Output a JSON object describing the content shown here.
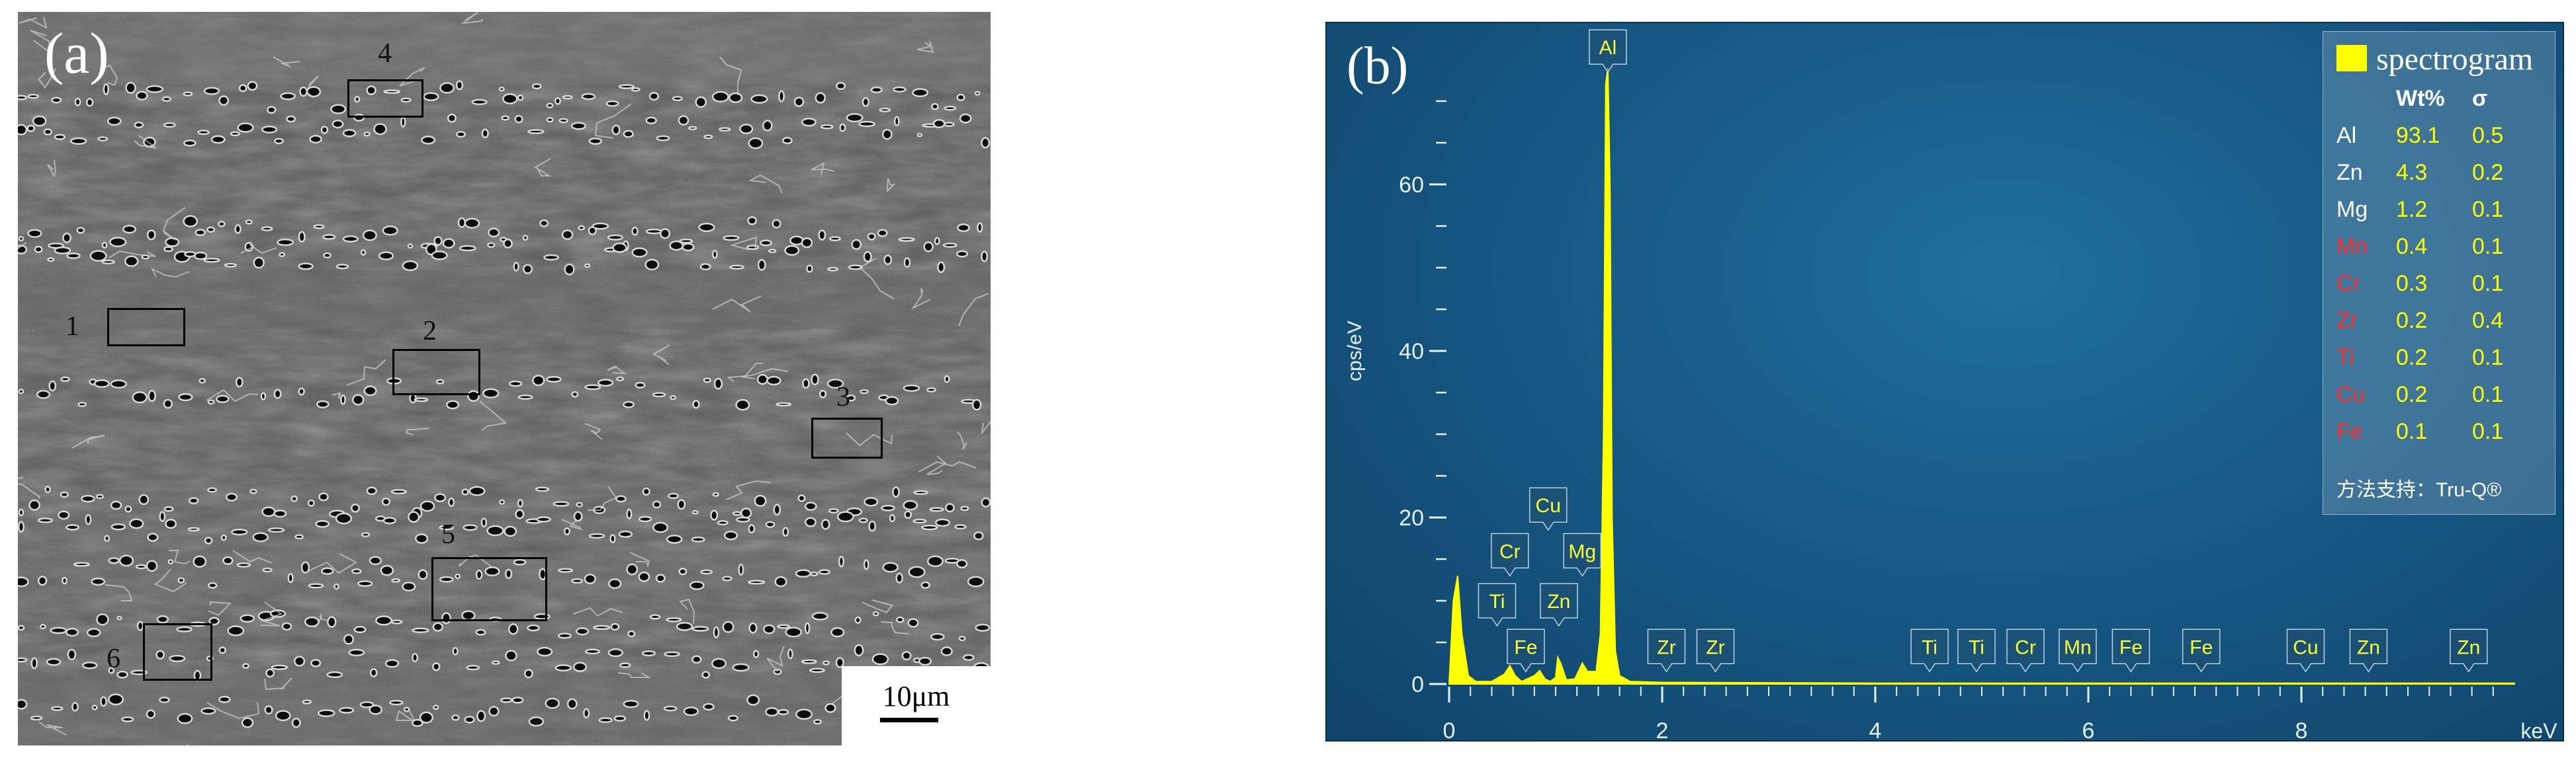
{
  "panel_a": {
    "label": "(a)",
    "scale_bar": "10μm",
    "regions": [
      "1",
      "2",
      "3",
      "4",
      "5",
      "6"
    ]
  },
  "chart_data": {
    "type": "line",
    "panel_label": "(b)",
    "title": "",
    "xlabel": "keV",
    "ylabel": "cps/eV",
    "xlim": [
      0,
      10
    ],
    "ylim": [
      0,
      75
    ],
    "x_ticks": [
      "0",
      "2",
      "4",
      "6",
      "8"
    ],
    "y_ticks": [
      "0",
      "20",
      "40",
      "60"
    ],
    "grid": false,
    "legend": "top-right",
    "series": [
      {
        "name": "spectrogram",
        "color": "#ffff00",
        "x": [
          0,
          0.04,
          0.08,
          0.12,
          0.18,
          0.25,
          0.4,
          0.52,
          0.57,
          0.62,
          0.68,
          0.8,
          0.85,
          0.9,
          0.95,
          1.0,
          1.02,
          1.05,
          1.1,
          1.18,
          1.25,
          1.3,
          1.38,
          1.42,
          1.45,
          1.47,
          1.49,
          1.51,
          1.53,
          1.56,
          1.6,
          1.7,
          2.0,
          4.0,
          6.0,
          8.0,
          10.0
        ],
        "y": [
          0,
          10,
          13,
          6,
          1,
          0.3,
          0.3,
          1.2,
          2.2,
          1.0,
          0.3,
          1.0,
          1.6,
          0.6,
          0.3,
          0.8,
          3.2,
          2.4,
          0.5,
          0.6,
          2.5,
          1.5,
          1.5,
          6,
          30,
          72,
          74,
          60,
          20,
          4,
          1,
          0.3,
          0.2,
          0.1,
          0.1,
          0.1,
          0.1
        ]
      }
    ],
    "peak_labels": [
      {
        "label": "Al",
        "x": 1.49,
        "y": 76.5
      },
      {
        "label": "Cu",
        "x": 0.93,
        "y": 21.5
      },
      {
        "label": "Cr",
        "x": 0.57,
        "y": 16
      },
      {
        "label": "Mg",
        "x": 1.25,
        "y": 16
      },
      {
        "label": "Ti",
        "x": 0.45,
        "y": 10
      },
      {
        "label": "Zn",
        "x": 1.03,
        "y": 10
      },
      {
        "label": "Fe",
        "x": 0.72,
        "y": 4.5
      },
      {
        "label": "Zr",
        "x": 2.04,
        "y": 4.5
      },
      {
        "label": "Zr",
        "x": 2.5,
        "y": 4.5
      },
      {
        "label": "Ti",
        "x": 4.51,
        "y": 4.5
      },
      {
        "label": "Ti",
        "x": 4.95,
        "y": 4.5
      },
      {
        "label": "Cr",
        "x": 5.41,
        "y": 4.5
      },
      {
        "label": "Mn",
        "x": 5.9,
        "y": 4.5
      },
      {
        "label": "Fe",
        "x": 6.4,
        "y": 4.5
      },
      {
        "label": "Fe",
        "x": 7.06,
        "y": 4.5
      },
      {
        "label": "Cu",
        "x": 8.04,
        "y": 4.5
      },
      {
        "label": "Zn",
        "x": 8.63,
        "y": 4.5
      },
      {
        "label": "Zn",
        "x": 9.57,
        "y": 4.5
      }
    ],
    "table": {
      "headers": [
        "",
        "Wt%",
        "σ"
      ],
      "rows": [
        {
          "element": "Al",
          "wt": "93.1",
          "sigma": "0.5",
          "color": "#ffffff"
        },
        {
          "element": "Zn",
          "wt": "4.3",
          "sigma": "0.2",
          "color": "#ffffff"
        },
        {
          "element": "Mg",
          "wt": "1.2",
          "sigma": "0.1",
          "color": "#ffffff"
        },
        {
          "element": "Mn",
          "wt": "0.4",
          "sigma": "0.1",
          "color": "#ff2a2a"
        },
        {
          "element": "Cr",
          "wt": "0.3",
          "sigma": "0.1",
          "color": "#ff2a2a"
        },
        {
          "element": "Zr",
          "wt": "0.2",
          "sigma": "0.4",
          "color": "#ff2a2a"
        },
        {
          "element": "Ti",
          "wt": "0.2",
          "sigma": "0.1",
          "color": "#ff2a2a"
        },
        {
          "element": "Cu",
          "wt": "0.2",
          "sigma": "0.1",
          "color": "#ff2a2a"
        },
        {
          "element": "Fe",
          "wt": "0.1",
          "sigma": "0.1",
          "color": "#ff2a2a"
        }
      ],
      "value_color": "#ffff00",
      "footer": "方法支持：Tru-Q®"
    }
  }
}
